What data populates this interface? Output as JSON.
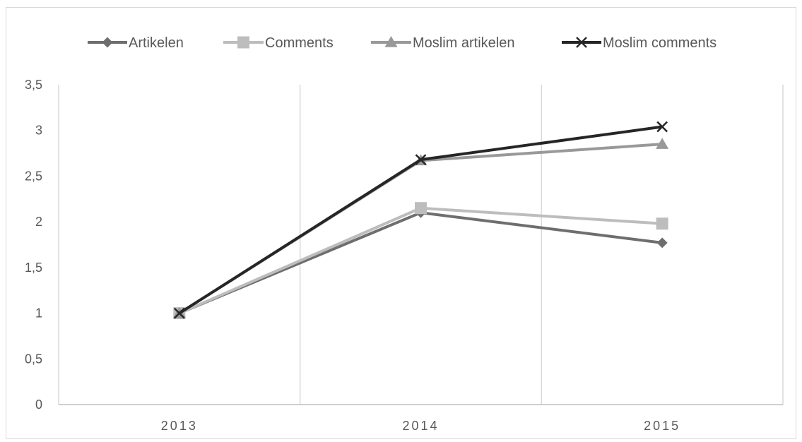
{
  "chart_data": {
    "type": "line",
    "categories": [
      "2013",
      "2014",
      "2015"
    ],
    "ylim": [
      0,
      3.5
    ],
    "yticks": [
      "0",
      "0,5",
      "1",
      "1,5",
      "2",
      "2,5",
      "3",
      "3,5"
    ],
    "ytick_values": [
      0,
      0.5,
      1,
      1.5,
      2,
      2.5,
      3,
      3.5
    ],
    "grid": "vertical",
    "legend": "top",
    "series": [
      {
        "name": "Artikelen",
        "values": [
          1.0,
          2.1,
          1.77
        ],
        "color": "#6e6e6e",
        "marker": "diamond"
      },
      {
        "name": "Comments",
        "values": [
          1.0,
          2.15,
          1.98
        ],
        "color": "#bdbdbd",
        "marker": "square"
      },
      {
        "name": "Moslim artikelen",
        "values": [
          1.0,
          2.67,
          2.85
        ],
        "color": "#999999",
        "marker": "triangle"
      },
      {
        "name": "Moslim comments",
        "values": [
          1.0,
          2.68,
          3.04
        ],
        "color": "#262626",
        "marker": "x"
      }
    ]
  }
}
